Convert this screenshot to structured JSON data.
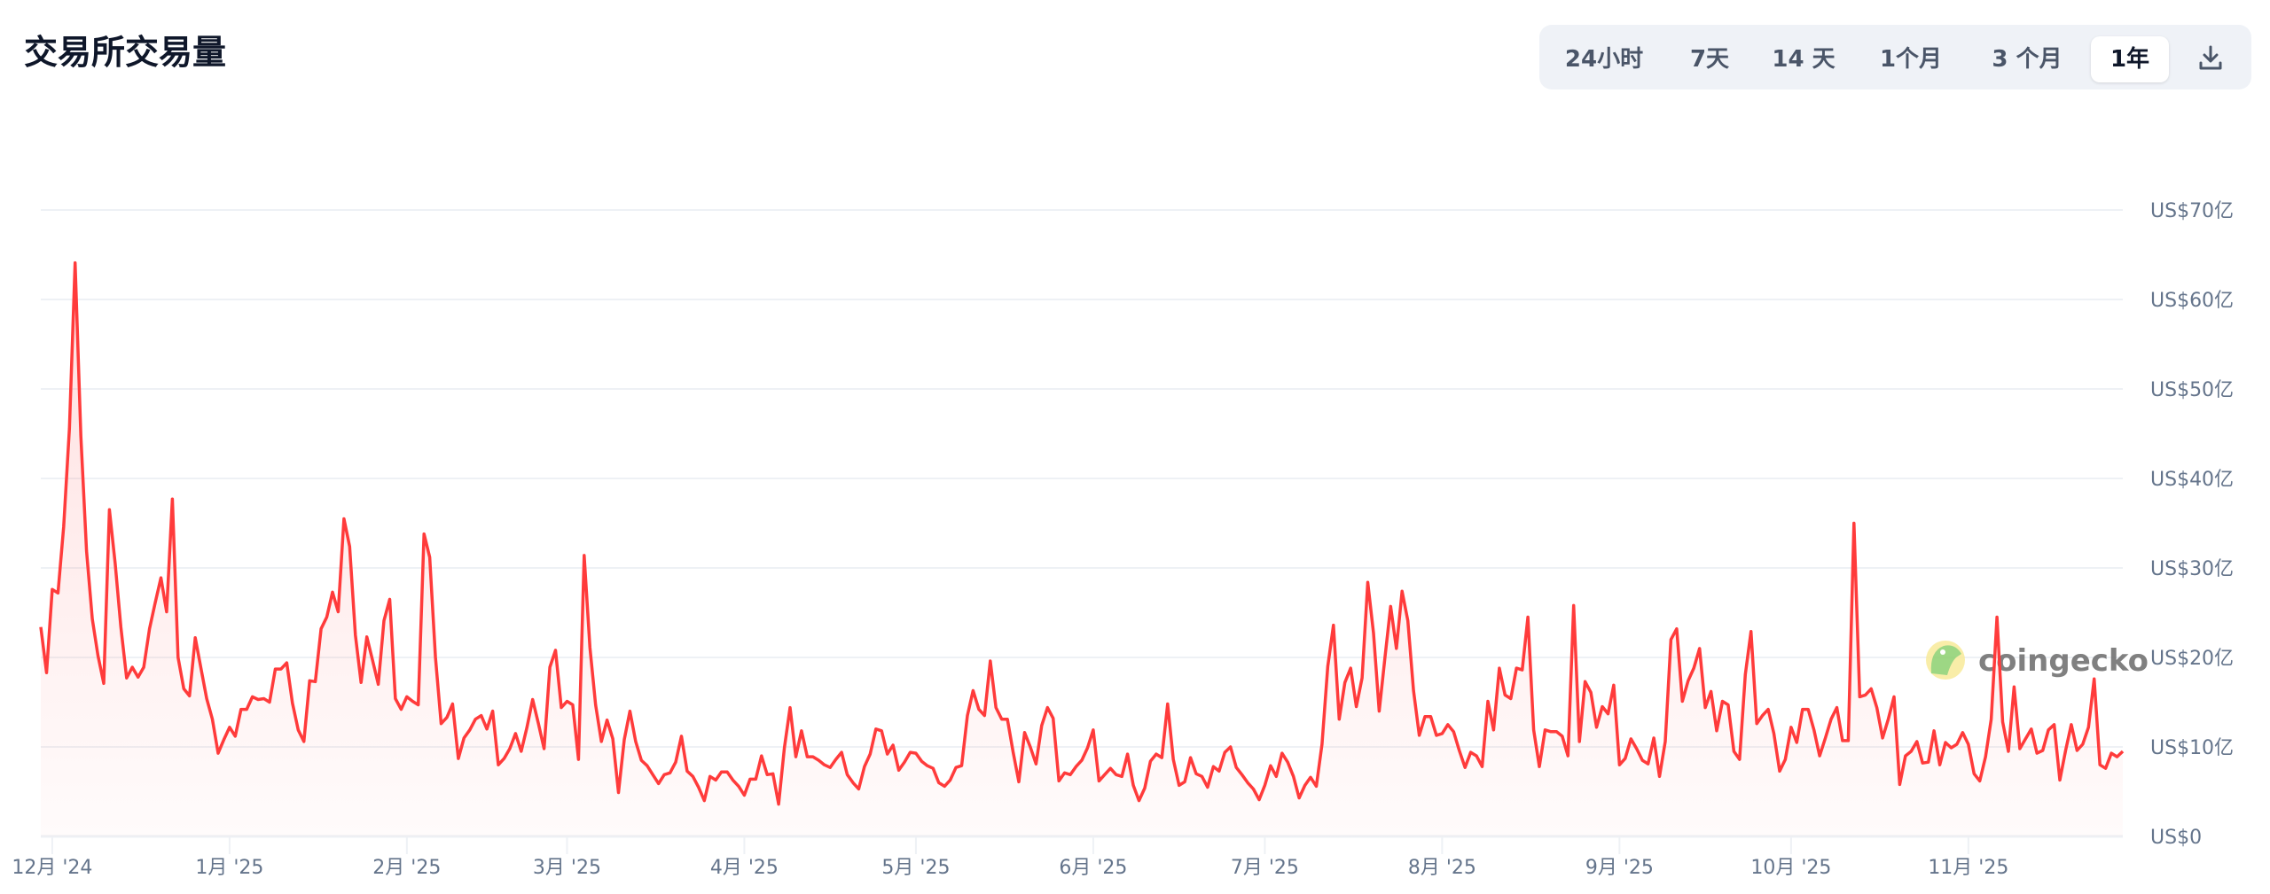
{
  "header": {
    "title": "交易所交易量"
  },
  "range_selector": {
    "options": [
      "24小时",
      "7天",
      "14 天",
      "1个月",
      "3 个月",
      "1年"
    ],
    "selected": "1年",
    "download_icon": "download-icon"
  },
  "watermark": {
    "text": "coingecko",
    "logo": "coingecko-gecko-logo"
  },
  "colors": {
    "line": "#ff3b3b",
    "fill": "#ff3b3b",
    "grid": "#eef1f5",
    "axis_text": "#64748b",
    "button_bg": "#eff2f7"
  },
  "chart_data": {
    "type": "area",
    "title": "",
    "xlabel": "",
    "ylabel": "",
    "x_range": [
      "2024-11-29",
      "2025-11-28"
    ],
    "x_interval": "daily",
    "ylim": [
      0,
      70
    ],
    "y_unit": "US$亿",
    "grid": true,
    "y_ticks": [
      {
        "value": 0,
        "label": "US$0"
      },
      {
        "value": 10,
        "label": "US$10亿"
      },
      {
        "value": 20,
        "label": "US$20亿"
      },
      {
        "value": 30,
        "label": "US$30亿"
      },
      {
        "value": 40,
        "label": "US$40亿"
      },
      {
        "value": 50,
        "label": "US$50亿"
      },
      {
        "value": 60,
        "label": "US$60亿"
      },
      {
        "value": 70,
        "label": "US$70亿"
      }
    ],
    "x_ticks": [
      {
        "date": "2024-12-01",
        "label": "12月 '24"
      },
      {
        "date": "2025-01-01",
        "label": "1月 '25"
      },
      {
        "date": "2025-02-01",
        "label": "2月 '25"
      },
      {
        "date": "2025-03-01",
        "label": "3月 '25"
      },
      {
        "date": "2025-04-01",
        "label": "4月 '25"
      },
      {
        "date": "2025-05-01",
        "label": "5月 '25"
      },
      {
        "date": "2025-06-01",
        "label": "6月 '25"
      },
      {
        "date": "2025-07-01",
        "label": "7月 '25"
      },
      {
        "date": "2025-08-01",
        "label": "8月 '25"
      },
      {
        "date": "2025-09-01",
        "label": "9月 '25"
      },
      {
        "date": "2025-10-01",
        "label": "10月 '25"
      },
      {
        "date": "2025-11-01",
        "label": "11月 '25"
      }
    ],
    "values": [
      23.4,
      18.3,
      27.6,
      27.2,
      34.6,
      45.6,
      64.1,
      44.7,
      31.9,
      24.3,
      20.2,
      17.1,
      36.5,
      30.5,
      23.4,
      17.7,
      18.9,
      17.8,
      18.9,
      23.2,
      26.1,
      28.9,
      25.1,
      37.7,
      20.0,
      16.5,
      15.7,
      22.2,
      18.8,
      15.4,
      13.1,
      9.3,
      10.8,
      12.2,
      11.2,
      14.2,
      14.2,
      15.6,
      15.3,
      15.4,
      15.0,
      18.7,
      18.7,
      19.4,
      14.9,
      11.9,
      10.6,
      17.4,
      17.3,
      23.2,
      24.5,
      27.3,
      25.1,
      35.5,
      32.4,
      22.5,
      17.2,
      22.3,
      19.7,
      17.0,
      24.1,
      26.5,
      15.4,
      14.2,
      15.6,
      15.1,
      14.7,
      33.8,
      31.2,
      20.0,
      12.6,
      13.3,
      14.8,
      8.7,
      11.0,
      11.9,
      13.1,
      13.5,
      12.0,
      14.0,
      8.0,
      8.7,
      9.8,
      11.5,
      9.5,
      12.2,
      15.3,
      12.6,
      9.8,
      18.9,
      20.8,
      14.4,
      15.1,
      14.7,
      8.6,
      31.4,
      21.1,
      14.7,
      10.6,
      13.0,
      10.9,
      4.9,
      10.8,
      14.0,
      10.6,
      8.5,
      7.9,
      6.9,
      5.9,
      6.9,
      7.1,
      8.3,
      11.2,
      7.3,
      6.7,
      5.5,
      4.0,
      6.7,
      6.3,
      7.2,
      7.2,
      6.3,
      5.6,
      4.6,
      6.4,
      6.4,
      9.0,
      6.9,
      7.0,
      3.6,
      9.9,
      14.4,
      8.9,
      11.8,
      8.9,
      8.9,
      8.5,
      8.0,
      7.7,
      8.6,
      9.4,
      6.9,
      6.0,
      5.3,
      7.8,
      9.2,
      12.0,
      11.8,
      9.2,
      10.2,
      7.4,
      8.3,
      9.4,
      9.3,
      8.4,
      7.9,
      7.6,
      6.0,
      5.6,
      6.3,
      7.7,
      7.9,
      13.5,
      16.3,
      14.2,
      13.5,
      19.6,
      14.4,
      13.1,
      13.1,
      9.4,
      6.1,
      11.6,
      10.0,
      8.1,
      12.4,
      14.4,
      13.2,
      6.2,
      7.1,
      6.9,
      7.8,
      8.5,
      9.9,
      11.9,
      6.2,
      6.9,
      7.6,
      6.9,
      6.7,
      9.2,
      5.7,
      4.0,
      5.4,
      8.4,
      9.2,
      8.8,
      14.8,
      8.6,
      5.7,
      6.1,
      8.8,
      7.0,
      6.7,
      5.5,
      7.8,
      7.3,
      9.4,
      10.0,
      7.7,
      6.9,
      6.0,
      5.3,
      4.1,
      5.7,
      7.9,
      6.7,
      9.3,
      8.3,
      6.7,
      4.3,
      5.7,
      6.6,
      5.6,
      10.3,
      19.0,
      23.6,
      13.1,
      17.2,
      18.8,
      14.5,
      17.7,
      28.4,
      22.7,
      14.0,
      20.0,
      25.7,
      21.0,
      27.4,
      24.1,
      16.3,
      11.3,
      13.4,
      13.4,
      11.3,
      11.5,
      12.5,
      11.7,
      9.6,
      7.7,
      9.4,
      9.0,
      7.8,
      15.1,
      11.9,
      18.8,
      15.8,
      15.4,
      18.8,
      18.6,
      24.5,
      11.9,
      7.8,
      11.9,
      11.7,
      11.7,
      11.2,
      9.0,
      25.8,
      10.6,
      17.3,
      16.1,
      12.2,
      14.5,
      13.7,
      16.9,
      8.0,
      8.7,
      10.9,
      9.8,
      8.5,
      8.1,
      11.0,
      6.7,
      10.6,
      22.0,
      23.2,
      15.1,
      17.4,
      18.8,
      21.0,
      14.4,
      16.2,
      11.8,
      15.1,
      14.7,
      9.5,
      8.6,
      18.1,
      22.9,
      12.6,
      13.5,
      14.2,
      11.5,
      7.3,
      8.6,
      12.2,
      10.5,
      14.2,
      14.2,
      11.9,
      9.0,
      11.0,
      13.1,
      14.4,
      10.7,
      10.7,
      35.0,
      15.6,
      15.8,
      16.5,
      14.4,
      11.0,
      13.1,
      15.6,
      5.8,
      9.0,
      9.5,
      10.6,
      8.2,
      8.3,
      11.8,
      8.0,
      10.5,
      9.9,
      10.3,
      11.6,
      10.3,
      7.0,
      6.2,
      8.9,
      13.1,
      24.5,
      12.8,
      9.5,
      16.7,
      9.8,
      10.9,
      12.0,
      9.3,
      9.6,
      11.9,
      12.5,
      6.3,
      9.6,
      12.5,
      9.6,
      10.3,
      12.2,
      17.6,
      8.0,
      7.6,
      9.3,
      8.9,
      9.5
    ]
  }
}
